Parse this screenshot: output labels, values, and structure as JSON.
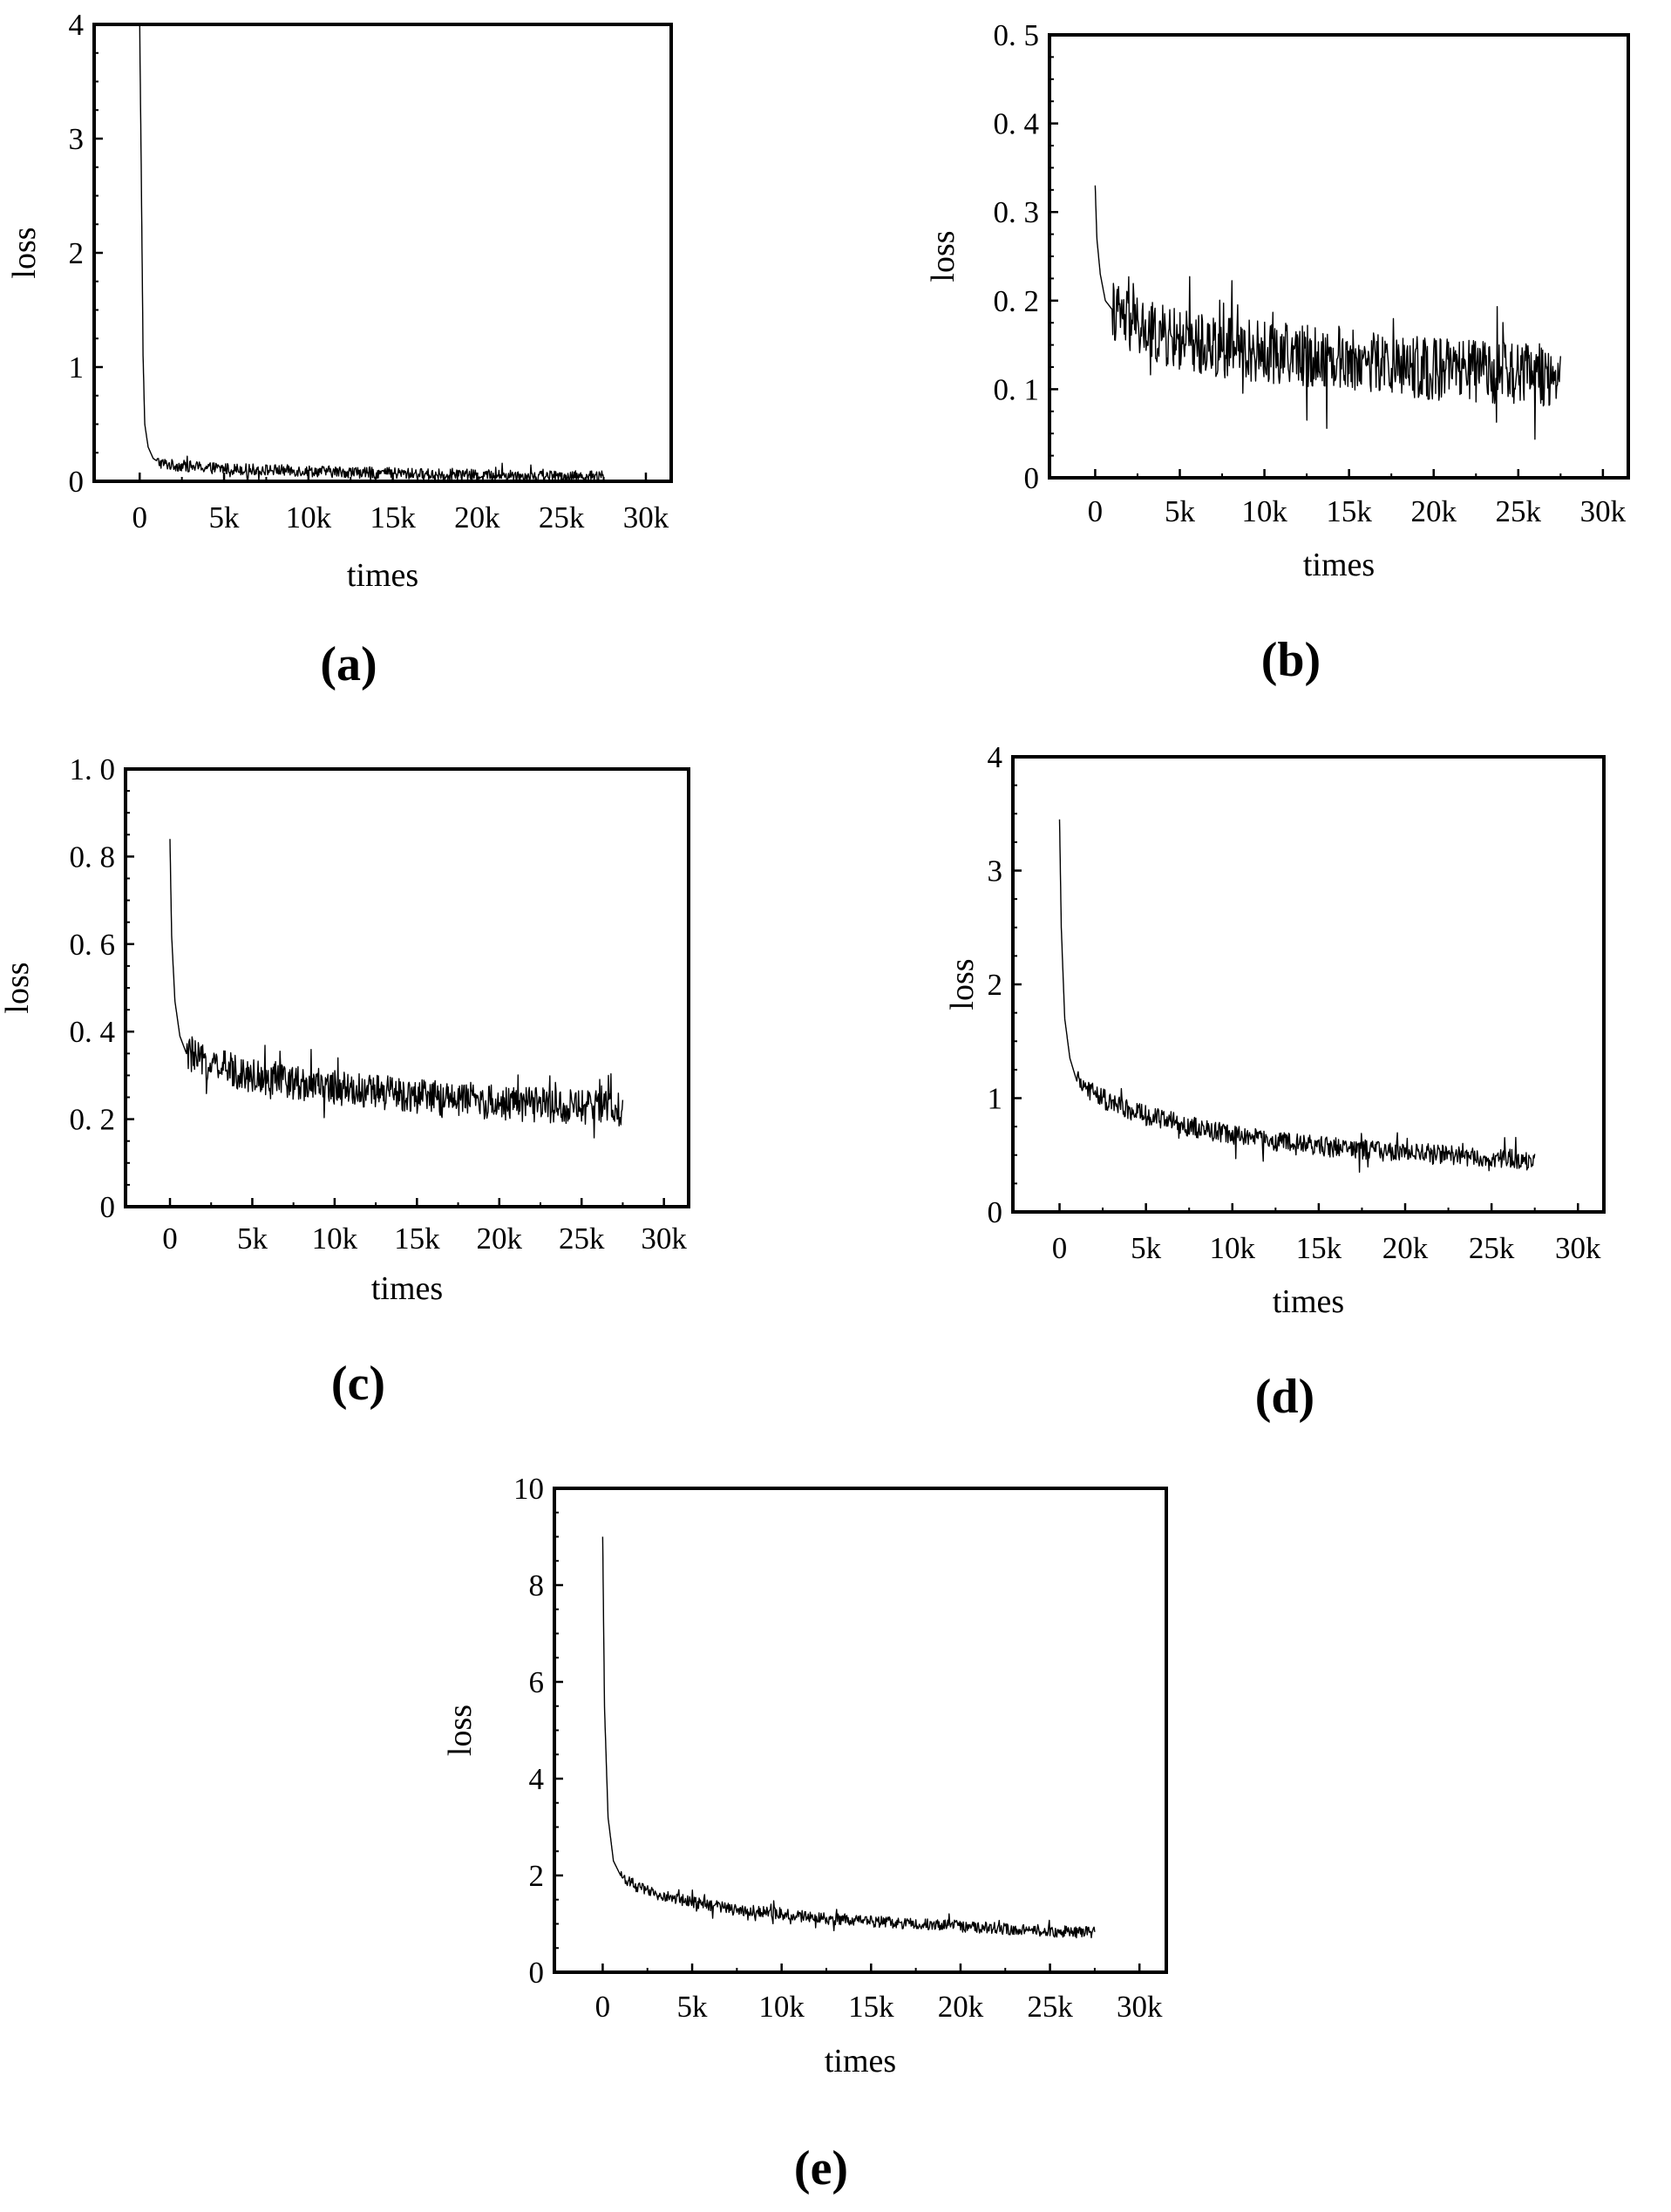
{
  "chart_data": [
    {
      "panel": "(a)",
      "type": "line",
      "xlabel": "times",
      "ylabel": "loss",
      "xlim": [
        -2700,
        31500
      ],
      "ylim": [
        0,
        4
      ],
      "xticks": [
        0,
        5000,
        10000,
        15000,
        20000,
        25000,
        30000
      ],
      "xtick_labels": [
        "0",
        "5k",
        "10k",
        "15k",
        "20k",
        "25k",
        "30k"
      ],
      "yticks": [
        0,
        1,
        2,
        3,
        4
      ],
      "ytick_labels": [
        "0",
        "1",
        "2",
        "3",
        "4"
      ],
      "series": [
        {
          "x": [
            0,
            100,
            200,
            300,
            500,
            800,
            1200,
            2000,
            3000,
            5000,
            7500,
            10000,
            12500,
            15000,
            17500,
            20000,
            22500,
            25000,
            27500
          ],
          "y": [
            4.0,
            2.6,
            1.1,
            0.5,
            0.3,
            0.2,
            0.16,
            0.14,
            0.13,
            0.11,
            0.1,
            0.09,
            0.08,
            0.07,
            0.06,
            0.055,
            0.05,
            0.045,
            0.04
          ],
          "noise": 0.05
        }
      ]
    },
    {
      "panel": "(b)",
      "type": "line",
      "xlabel": "times",
      "ylabel": "loss",
      "xlim": [
        -2700,
        31500
      ],
      "ylim": [
        0,
        0.5
      ],
      "xticks": [
        0,
        5000,
        10000,
        15000,
        20000,
        25000,
        30000
      ],
      "xtick_labels": [
        "0",
        "5k",
        "10k",
        "15k",
        "20k",
        "25k",
        "30k"
      ],
      "yticks": [
        0,
        0.1,
        0.2,
        0.3,
        0.4,
        0.5
      ],
      "ytick_labels": [
        "0",
        "0. 1",
        "0. 2",
        "0. 3",
        "0. 4",
        "0. 5"
      ],
      "series": [
        {
          "x": [
            0,
            100,
            300,
            600,
            1000,
            2000,
            3000,
            5000,
            7500,
            10000,
            12500,
            15000,
            17500,
            20000,
            22500,
            25000,
            27500
          ],
          "y": [
            0.33,
            0.27,
            0.23,
            0.2,
            0.19,
            0.175,
            0.165,
            0.155,
            0.148,
            0.142,
            0.138,
            0.133,
            0.128,
            0.123,
            0.12,
            0.117,
            0.115
          ],
          "noise": 0.035
        }
      ]
    },
    {
      "panel": "(c)",
      "type": "line",
      "xlabel": "times",
      "ylabel": "loss",
      "xlim": [
        -2700,
        31500
      ],
      "ylim": [
        0,
        1.0
      ],
      "xticks": [
        0,
        5000,
        10000,
        15000,
        20000,
        25000,
        30000
      ],
      "xtick_labels": [
        "0",
        "5k",
        "10k",
        "15k",
        "20k",
        "25k",
        "30k"
      ],
      "yticks": [
        0,
        0.2,
        0.4,
        0.6,
        0.8,
        1.0
      ],
      "ytick_labels": [
        "0",
        "0. 2",
        "0. 4",
        "0. 6",
        "0. 8",
        "1. 0"
      ],
      "series": [
        {
          "x": [
            0,
            100,
            300,
            600,
            1000,
            2000,
            3000,
            5000,
            7500,
            10000,
            12500,
            15000,
            17500,
            20000,
            22500,
            25000,
            27500
          ],
          "y": [
            0.84,
            0.62,
            0.47,
            0.39,
            0.35,
            0.33,
            0.32,
            0.3,
            0.285,
            0.272,
            0.262,
            0.252,
            0.245,
            0.238,
            0.232,
            0.228,
            0.225
          ],
          "noise": 0.04
        }
      ]
    },
    {
      "panel": "(d)",
      "type": "line",
      "xlabel": "times",
      "ylabel": "loss",
      "xlim": [
        -2700,
        31500
      ],
      "ylim": [
        0,
        4
      ],
      "xticks": [
        0,
        5000,
        10000,
        15000,
        20000,
        25000,
        30000
      ],
      "xtick_labels": [
        "0",
        "5k",
        "10k",
        "15k",
        "20k",
        "25k",
        "30k"
      ],
      "yticks": [
        0,
        1,
        2,
        3,
        4
      ],
      "ytick_labels": [
        "0",
        "1",
        "2",
        "3",
        "4"
      ],
      "series": [
        {
          "x": [
            0,
            100,
            300,
            600,
            1000,
            2000,
            3000,
            5000,
            7500,
            10000,
            12500,
            15000,
            17500,
            20000,
            22500,
            25000,
            27500
          ],
          "y": [
            3.45,
            2.5,
            1.7,
            1.35,
            1.15,
            1.05,
            0.95,
            0.85,
            0.75,
            0.68,
            0.62,
            0.58,
            0.55,
            0.52,
            0.5,
            0.47,
            0.45
          ],
          "noise": 0.09
        }
      ]
    },
    {
      "panel": "(e)",
      "type": "line",
      "xlabel": "times",
      "ylabel": "loss",
      "xlim": [
        -2700,
        31500
      ],
      "ylim": [
        0,
        10
      ],
      "xticks": [
        0,
        5000,
        10000,
        15000,
        20000,
        25000,
        30000
      ],
      "xtick_labels": [
        "0",
        "5k",
        "10k",
        "15k",
        "20k",
        "25k",
        "30k"
      ],
      "yticks": [
        0,
        2,
        4,
        6,
        8,
        10
      ],
      "ytick_labels": [
        "0",
        "2",
        "4",
        "6",
        "8",
        "10"
      ],
      "series": [
        {
          "x": [
            0,
            100,
            300,
            600,
            1000,
            2000,
            3000,
            5000,
            7500,
            10000,
            12500,
            15000,
            17500,
            20000,
            22500,
            25000,
            27500
          ],
          "y": [
            9.0,
            5.5,
            3.2,
            2.3,
            2.0,
            1.75,
            1.6,
            1.45,
            1.3,
            1.2,
            1.1,
            1.05,
            1.0,
            0.95,
            0.9,
            0.85,
            0.82
          ],
          "noise": 0.12
        }
      ]
    }
  ]
}
